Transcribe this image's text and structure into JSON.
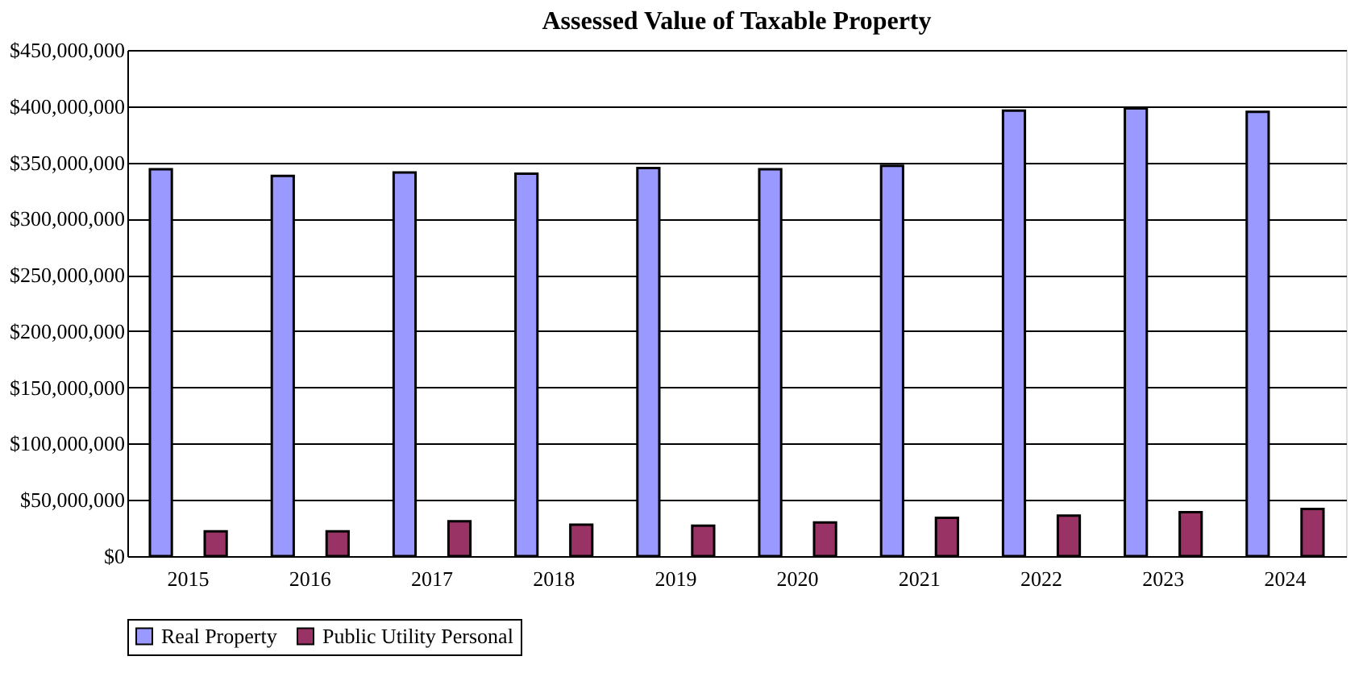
{
  "chart_data": {
    "type": "bar",
    "title": "Assessed Value of Taxable Property",
    "categories": [
      "2015",
      "2016",
      "2017",
      "2018",
      "2019",
      "2020",
      "2021",
      "2022",
      "2023",
      "2024"
    ],
    "series": [
      {
        "name": "Real Property",
        "color": "#9999ff",
        "values": [
          344000000,
          338000000,
          341000000,
          340000000,
          345000000,
          344000000,
          347000000,
          396000000,
          398000000,
          395000000
        ]
      },
      {
        "name": "Public Utility Personal",
        "color": "#993366",
        "values": [
          22000000,
          22000000,
          31000000,
          28000000,
          27000000,
          30000000,
          34000000,
          36000000,
          39000000,
          42000000
        ]
      }
    ],
    "ylim": [
      0,
      450000000
    ],
    "yticks": [
      {
        "value": 0,
        "label": "$0"
      },
      {
        "value": 50000000,
        "label": "$50,000,000"
      },
      {
        "value": 100000000,
        "label": "$100,000,000"
      },
      {
        "value": 150000000,
        "label": "$150,000,000"
      },
      {
        "value": 200000000,
        "label": "$200,000,000"
      },
      {
        "value": 250000000,
        "label": "$250,000,000"
      },
      {
        "value": 300000000,
        "label": "$300,000,000"
      },
      {
        "value": 350000000,
        "label": "$350,000,000"
      },
      {
        "value": 400000000,
        "label": "$400,000,000"
      },
      {
        "value": 450000000,
        "label": "$450,000,000"
      }
    ],
    "grid": "y",
    "legend": "bottom"
  }
}
